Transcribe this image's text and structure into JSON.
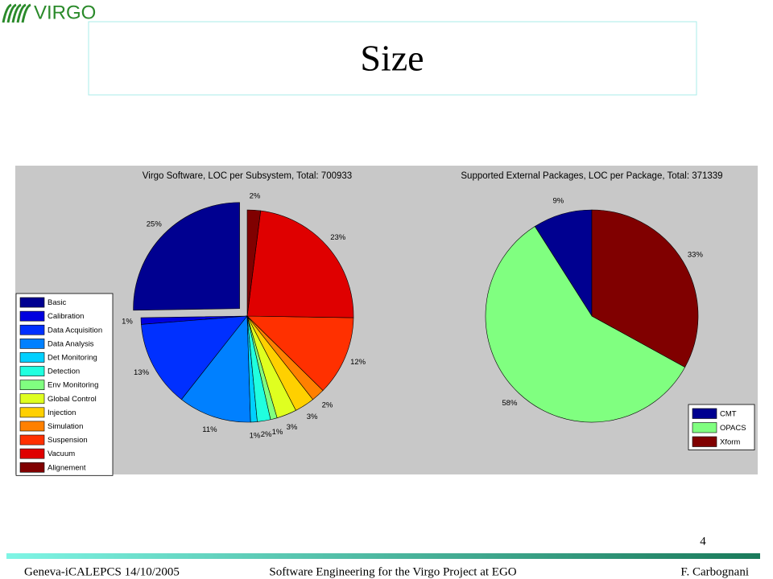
{
  "slide": {
    "logo": "VIRGO",
    "title": "Size",
    "page_number": "4",
    "footer": {
      "left": "Geneva-iCALEPCS 14/10/2005",
      "center": "Software Engineering for the Virgo Project at EGO",
      "right": "F. Carbognani"
    }
  },
  "chart_data": [
    {
      "type": "pie",
      "title": "Virgo Software, LOC per Subsystem, Total: 700933",
      "categories": [
        "Basic",
        "Calibration",
        "Data Acquisition",
        "Data Analysis",
        "Det Monitoring",
        "Detection",
        "Env Monitoring",
        "Global Control",
        "Injection",
        "Simulation",
        "Suspension",
        "Vacuum",
        "Alignement"
      ],
      "values": [
        25,
        1,
        13,
        11,
        1,
        2,
        1,
        3,
        3,
        2,
        12,
        23,
        2
      ],
      "value_labels": [
        "25%",
        "1%",
        "13%",
        "11%",
        "1%",
        "2%",
        "1%",
        "3%",
        "3%",
        "2%",
        "12%",
        "23%",
        "2%"
      ],
      "colors": [
        "#000090",
        "#0000df",
        "#0030ff",
        "#0080ff",
        "#00d0ff",
        "#20ffdf",
        "#80ff80",
        "#dfff20",
        "#ffd000",
        "#ff8000",
        "#ff3000",
        "#df0000",
        "#800000"
      ],
      "exploded": [
        0
      ],
      "legend": "left"
    },
    {
      "type": "pie",
      "title": "Supported External Packages, LOC per Package, Total: 371339",
      "categories": [
        "CMT",
        "OPACS",
        "Xform"
      ],
      "values": [
        9,
        58,
        33
      ],
      "value_labels": [
        "9%",
        "58%",
        "33%"
      ],
      "colors": [
        "#000090",
        "#80ff80",
        "#800000"
      ],
      "exploded": [],
      "legend": "lower right"
    }
  ]
}
